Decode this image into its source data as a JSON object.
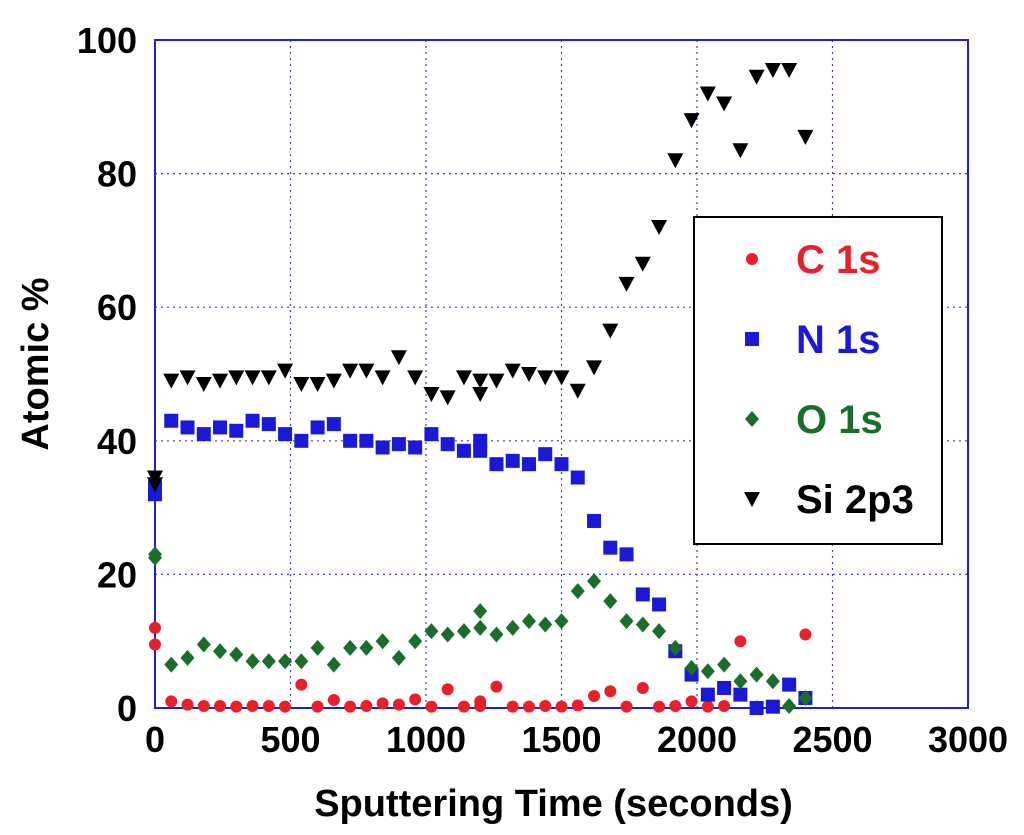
{
  "chart_data": {
    "type": "scatter",
    "title": "",
    "xlabel": "Sputtering Time (seconds)",
    "ylabel": "Atomic %",
    "xlim": [
      0,
      3000
    ],
    "ylim": [
      0,
      100
    ],
    "xticks": [
      "0",
      "500",
      "1000",
      "1500",
      "2000",
      "2500",
      "3000"
    ],
    "yticks": [
      "0",
      "20",
      "40",
      "60",
      "80",
      "100"
    ],
    "grid": true,
    "legend_position": "right",
    "series": [
      {
        "name": "C 1s",
        "marker": "circle",
        "color": "#e8202a",
        "x": [
          0,
          0,
          60,
          120,
          180,
          240,
          300,
          360,
          420,
          480,
          540,
          600,
          660,
          720,
          780,
          840,
          900,
          960,
          1020,
          1080,
          1140,
          1200,
          1200,
          1260,
          1320,
          1380,
          1440,
          1500,
          1560,
          1620,
          1680,
          1740,
          1800,
          1860,
          1920,
          1980,
          2040,
          2100,
          2160,
          2220,
          2280,
          2400
        ],
        "y": [
          12,
          9.5,
          1,
          0.5,
          0.3,
          0.3,
          0.2,
          0.3,
          0.3,
          0.2,
          3.5,
          0.2,
          1.2,
          0.2,
          0.3,
          0.7,
          0.5,
          1.3,
          0.2,
          2.8,
          0.2,
          0.3,
          1,
          3.2,
          0.2,
          0.2,
          0.3,
          0.2,
          0.4,
          1.8,
          2.5,
          0.2,
          3,
          0.2,
          0.3,
          1,
          0.2,
          0.3,
          10,
          0.2,
          0.2,
          11
        ]
      },
      {
        "name": "N 1s",
        "marker": "square",
        "color": "#1a1ad6",
        "x": [
          0,
          0,
          60,
          120,
          180,
          240,
          300,
          360,
          420,
          480,
          540,
          600,
          660,
          720,
          780,
          840,
          900,
          960,
          1020,
          1080,
          1140,
          1200,
          1200,
          1260,
          1320,
          1380,
          1440,
          1500,
          1560,
          1620,
          1680,
          1740,
          1800,
          1860,
          1920,
          1980,
          2040,
          2100,
          2160,
          2220,
          2280,
          2340,
          2400
        ],
        "y": [
          33,
          32,
          43,
          42,
          41,
          42,
          41.5,
          43,
          42.5,
          41,
          40,
          42,
          42.5,
          40,
          40,
          39,
          39.5,
          39,
          41,
          39.5,
          38.5,
          40,
          38.5,
          36.5,
          37,
          36.5,
          38,
          36.5,
          34.5,
          28,
          24,
          23,
          17,
          15.5,
          8.5,
          5,
          2,
          3,
          2,
          0,
          0.2,
          3.5,
          1.5
        ]
      },
      {
        "name": "O 1s",
        "marker": "diamond",
        "color": "#1a6e2a",
        "x": [
          0,
          0,
          60,
          120,
          180,
          240,
          300,
          360,
          420,
          480,
          540,
          600,
          660,
          720,
          780,
          840,
          900,
          960,
          1020,
          1080,
          1140,
          1200,
          1200,
          1260,
          1320,
          1380,
          1440,
          1500,
          1560,
          1620,
          1680,
          1740,
          1800,
          1860,
          1920,
          1980,
          2040,
          2100,
          2160,
          2220,
          2280,
          2340,
          2400
        ],
        "y": [
          23,
          22.5,
          6.5,
          7.5,
          9.5,
          8.5,
          8,
          7,
          7,
          7,
          7,
          9,
          6.5,
          9,
          9,
          10,
          7.5,
          10,
          11.5,
          11,
          11.5,
          12,
          14.5,
          11,
          12,
          13,
          12.5,
          13,
          17.5,
          19,
          16,
          13,
          12.5,
          11.5,
          9,
          6,
          5.5,
          6.5,
          4,
          5,
          4,
          0.3,
          1.5
        ]
      },
      {
        "name": "Si 2p3",
        "marker": "triangle-down",
        "color": "#000000",
        "x": [
          0,
          0,
          60,
          120,
          180,
          240,
          300,
          360,
          420,
          480,
          540,
          600,
          660,
          720,
          780,
          840,
          900,
          960,
          1020,
          1080,
          1140,
          1200,
          1200,
          1260,
          1320,
          1380,
          1440,
          1500,
          1560,
          1620,
          1680,
          1740,
          1800,
          1860,
          1920,
          1980,
          2040,
          2100,
          2160,
          2220,
          2280,
          2340,
          2400
        ],
        "y": [
          34.5,
          33.5,
          49,
          49.5,
          48.5,
          49,
          49.5,
          49.5,
          49.5,
          50.5,
          48.5,
          48.5,
          49,
          50.5,
          50.5,
          49.5,
          52.5,
          49.5,
          47,
          46.5,
          49.5,
          49,
          47,
          49,
          50.5,
          50,
          49.5,
          49.5,
          47.5,
          51,
          56.5,
          63.5,
          66.5,
          72,
          82,
          88,
          92,
          90.5,
          83.5,
          94.5,
          95.5,
          95.5,
          85.5
        ]
      }
    ]
  }
}
